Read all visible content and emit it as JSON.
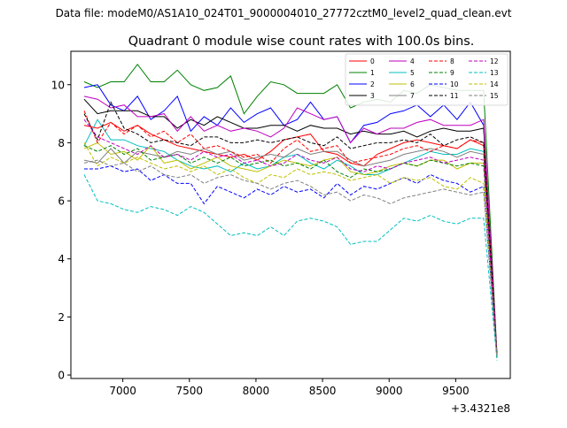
{
  "figure": {
    "suptitle": "Data file: modeM0/AS1A10_024T01_9000004010_27772cztM0_level2_quad_clean.evt",
    "title": "Quadrant 0 module wise count rates with 100.0s bins.",
    "offset_label": "+3.4321e8"
  },
  "chart_data": {
    "type": "line",
    "title": "Quadrant 0 module wise count rates with 100.0s bins.",
    "xlabel": "",
    "ylabel": "",
    "x_offset": 343210000,
    "xlim": [
      6610,
      9910
    ],
    "ylim": [
      -0.12,
      11.15
    ],
    "xticks": [
      7000,
      7500,
      8000,
      8500,
      9000,
      9500
    ],
    "yticks": [
      0,
      2,
      4,
      6,
      8,
      10
    ],
    "grid": false,
    "legend": "top-right, 4 columns",
    "x": [
      6710,
      6810,
      6910,
      7010,
      7110,
      7210,
      7310,
      7410,
      7510,
      7610,
      7710,
      7810,
      7910,
      8010,
      8110,
      8210,
      8310,
      8410,
      8510,
      8610,
      8710,
      8810,
      8910,
      9010,
      9110,
      9210,
      9310,
      9410,
      9510,
      9610,
      9710,
      9810
    ],
    "series": [
      {
        "name": "0",
        "color": "#ff0000",
        "dash": "solid",
        "values": [
          8.6,
          8.5,
          8.7,
          8.4,
          8.6,
          8.3,
          8.1,
          7.9,
          7.8,
          7.7,
          7.6,
          7.5,
          7.6,
          7.4,
          7.7,
          8.1,
          8.2,
          8.3,
          7.7,
          7.6,
          7.3,
          7.2,
          7.6,
          7.8,
          8.0,
          8.1,
          8.0,
          7.9,
          7.8,
          8.1,
          7.9,
          0.6
        ]
      },
      {
        "name": "1",
        "color": "#008000",
        "dash": "solid",
        "values": [
          10.1,
          9.9,
          10.1,
          10.1,
          10.7,
          10.1,
          10.1,
          10.5,
          10.0,
          9.8,
          9.9,
          10.3,
          9.0,
          9.6,
          10.1,
          10.0,
          9.7,
          9.7,
          9.7,
          10.0,
          9.2,
          9.4,
          9.5,
          9.4,
          9.8,
          9.7,
          10.0,
          9.9,
          9.8,
          9.8,
          9.8,
          0.7
        ]
      },
      {
        "name": "2",
        "color": "#0000ff",
        "dash": "solid",
        "values": [
          9.9,
          10.0,
          9.3,
          9.1,
          9.6,
          8.8,
          9.1,
          9.6,
          8.4,
          8.9,
          8.6,
          9.2,
          8.7,
          9.0,
          9.2,
          8.6,
          8.8,
          9.4,
          8.8,
          8.9,
          8.0,
          8.6,
          8.7,
          9.0,
          9.1,
          9.3,
          8.9,
          9.3,
          8.8,
          9.4,
          8.6,
          0.6
        ]
      },
      {
        "name": "3",
        "color": "#000000",
        "dash": "solid",
        "values": [
          9.5,
          9.0,
          9.1,
          9.1,
          9.1,
          8.9,
          8.9,
          8.5,
          8.8,
          8.6,
          8.9,
          8.7,
          8.5,
          8.5,
          8.6,
          8.6,
          8.4,
          8.6,
          8.5,
          8.5,
          8.3,
          8.4,
          8.3,
          8.3,
          8.4,
          8.2,
          8.4,
          8.5,
          8.4,
          8.4,
          8.5,
          0.6
        ]
      },
      {
        "name": "4",
        "color": "#bf00bf",
        "dash": "solid",
        "values": [
          9.6,
          9.5,
          9.2,
          9.3,
          8.9,
          8.9,
          9.0,
          8.4,
          8.9,
          8.4,
          8.6,
          8.4,
          8.5,
          8.4,
          8.2,
          8.5,
          9.2,
          9.0,
          8.8,
          8.9,
          8.0,
          8.5,
          8.3,
          8.5,
          8.5,
          8.7,
          8.8,
          8.6,
          8.6,
          8.6,
          8.8,
          0.7
        ]
      },
      {
        "name": "5",
        "color": "#00bfbf",
        "dash": "solid",
        "values": [
          7.9,
          8.8,
          8.1,
          8.1,
          7.9,
          7.8,
          7.7,
          7.4,
          7.2,
          7.1,
          7.2,
          7.0,
          7.3,
          7.1,
          7.2,
          7.5,
          7.6,
          7.3,
          7.1,
          7.4,
          7.2,
          6.9,
          6.9,
          7.1,
          7.3,
          7.5,
          7.7,
          7.6,
          7.6,
          7.8,
          7.7,
          0.6
        ]
      },
      {
        "name": "6",
        "color": "#bfbf00",
        "dash": "solid",
        "values": [
          7.8,
          8.0,
          7.6,
          7.7,
          7.4,
          7.9,
          7.3,
          7.4,
          7.1,
          7.3,
          7.5,
          7.2,
          7.1,
          7.0,
          7.2,
          7.4,
          7.3,
          7.2,
          7.4,
          7.5,
          7.0,
          6.9,
          7.0,
          7.2,
          7.3,
          7.2,
          7.4,
          7.4,
          7.1,
          7.3,
          7.3,
          0.6
        ]
      },
      {
        "name": "7",
        "color": "#808080",
        "dash": "solid",
        "values": [
          7.4,
          7.3,
          7.8,
          7.3,
          7.7,
          7.6,
          7.5,
          7.7,
          7.6,
          7.8,
          7.6,
          7.7,
          7.4,
          7.5,
          7.6,
          7.5,
          7.8,
          7.6,
          7.7,
          7.7,
          7.4,
          7.2,
          7.3,
          7.4,
          7.6,
          7.7,
          7.8,
          7.7,
          7.5,
          7.7,
          7.6,
          0.6
        ]
      },
      {
        "name": "8",
        "color": "#ff0000",
        "dash": "dashed",
        "values": [
          9.1,
          8.0,
          8.7,
          8.3,
          8.6,
          8.2,
          8.4,
          8.0,
          8.3,
          7.8,
          7.9,
          7.7,
          7.5,
          7.6,
          7.3,
          7.8,
          8.1,
          7.7,
          7.8,
          7.9,
          7.3,
          7.4,
          7.5,
          7.6,
          7.8,
          7.9,
          7.7,
          7.9,
          7.8,
          8.1,
          8.0,
          0.6
        ]
      },
      {
        "name": "9",
        "color": "#008000",
        "dash": "dashed",
        "values": [
          7.9,
          7.7,
          7.9,
          7.6,
          7.8,
          7.4,
          7.5,
          7.6,
          7.3,
          7.5,
          7.3,
          7.5,
          7.2,
          7.3,
          7.4,
          7.2,
          7.3,
          7.1,
          7.4,
          7.0,
          6.8,
          7.1,
          7.0,
          7.1,
          7.3,
          7.2,
          7.4,
          7.3,
          7.2,
          7.3,
          7.2,
          0.6
        ]
      },
      {
        "name": "10",
        "color": "#0000ff",
        "dash": "dashed",
        "values": [
          7.1,
          7.1,
          7.2,
          7.0,
          7.1,
          6.7,
          6.9,
          6.6,
          6.6,
          5.9,
          6.5,
          6.3,
          6.1,
          6.4,
          6.2,
          6.5,
          6.3,
          6.4,
          6.1,
          6.6,
          6.2,
          6.5,
          6.4,
          6.6,
          6.8,
          6.6,
          6.9,
          6.7,
          6.6,
          6.3,
          6.5,
          0.6
        ]
      },
      {
        "name": "11",
        "color": "#000000",
        "dash": "dashed",
        "values": [
          9.0,
          8.1,
          9.4,
          8.5,
          8.3,
          8.0,
          8.1,
          8.0,
          7.9,
          8.2,
          8.2,
          8.0,
          8.0,
          8.1,
          8.0,
          8.1,
          8.2,
          8.0,
          7.9,
          8.2,
          7.8,
          7.9,
          8.0,
          8.0,
          8.1,
          8.0,
          8.3,
          7.9,
          8.1,
          8.2,
          8.0,
          0.7
        ]
      },
      {
        "name": "12",
        "color": "#bf00bf",
        "dash": "dashed",
        "values": [
          8.8,
          8.2,
          8.0,
          7.8,
          7.6,
          7.9,
          7.5,
          7.6,
          7.4,
          7.7,
          7.5,
          7.6,
          7.3,
          7.4,
          7.2,
          7.3,
          7.6,
          7.4,
          7.3,
          7.5,
          7.1,
          7.0,
          7.2,
          7.1,
          7.3,
          7.4,
          7.5,
          7.3,
          7.4,
          7.5,
          7.4,
          0.6
        ]
      },
      {
        "name": "13",
        "color": "#00bfbf",
        "dash": "dashed",
        "values": [
          6.9,
          6.0,
          5.9,
          5.7,
          5.6,
          5.8,
          5.7,
          5.5,
          5.8,
          5.6,
          5.2,
          4.8,
          4.9,
          4.8,
          5.1,
          4.8,
          5.3,
          5.4,
          5.3,
          5.1,
          4.5,
          4.6,
          4.6,
          5.0,
          5.4,
          5.3,
          5.5,
          5.3,
          5.2,
          5.4,
          5.4,
          0.5
        ]
      },
      {
        "name": "14",
        "color": "#bfbf00",
        "dash": "dashed",
        "values": [
          8.0,
          7.2,
          7.5,
          7.3,
          7.5,
          7.3,
          7.1,
          7.2,
          7.0,
          7.2,
          6.9,
          7.1,
          6.8,
          6.6,
          6.9,
          6.8,
          7.1,
          6.9,
          7.0,
          6.9,
          6.7,
          6.8,
          6.9,
          6.6,
          6.8,
          6.7,
          6.8,
          6.5,
          6.4,
          6.8,
          6.6,
          0.6
        ]
      },
      {
        "name": "15",
        "color": "#808080",
        "dash": "dashed",
        "values": [
          7.3,
          7.4,
          7.2,
          7.3,
          7.0,
          7.2,
          6.9,
          6.8,
          6.9,
          6.6,
          6.8,
          6.9,
          6.7,
          6.6,
          6.4,
          6.6,
          6.7,
          6.5,
          6.2,
          6.3,
          6.0,
          6.2,
          6.1,
          5.9,
          6.1,
          6.2,
          6.3,
          6.4,
          6.3,
          6.2,
          6.3,
          0.6
        ]
      }
    ]
  }
}
